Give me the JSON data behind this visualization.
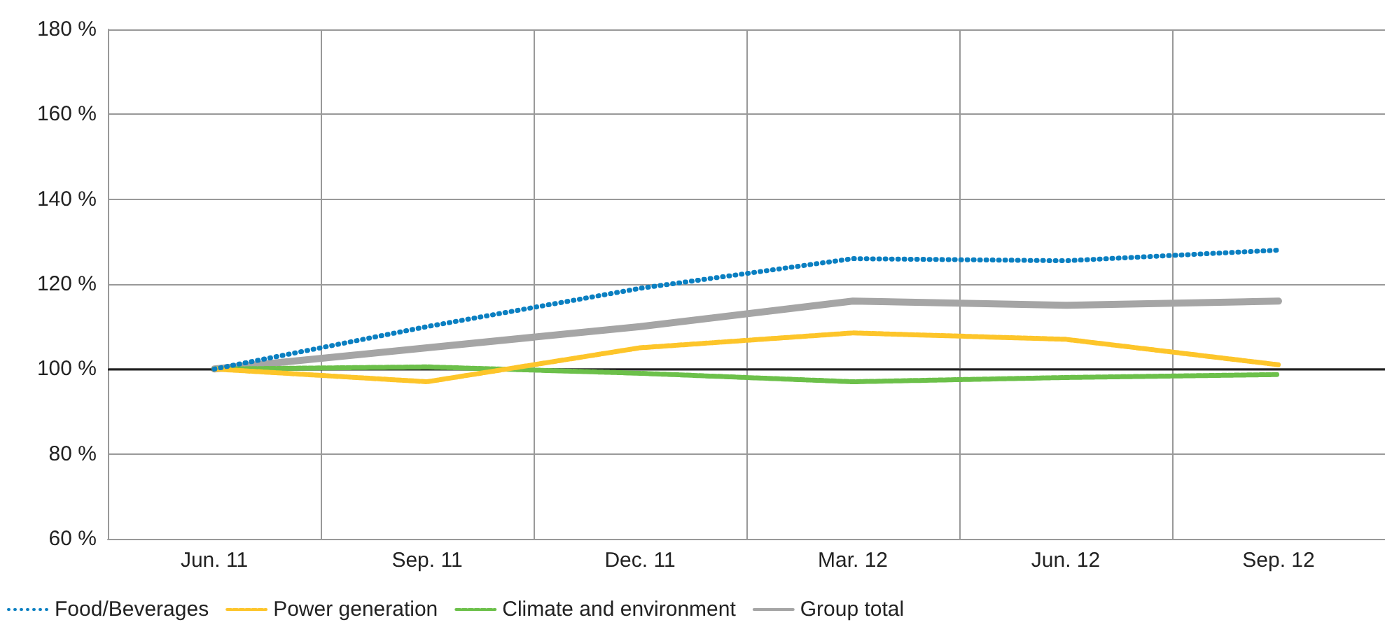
{
  "chart_data": {
    "type": "line",
    "categories": [
      "Jun. 11",
      "Sep. 11",
      "Dec. 11",
      "Mar. 12",
      "Jun. 12",
      "Sep. 12"
    ],
    "series": [
      {
        "name": "Food/Beverages",
        "color": "#0a7fc1",
        "line_style": "dotted",
        "values": [
          100,
          110,
          119,
          126,
          125.5,
          128
        ]
      },
      {
        "name": "Power generation",
        "color": "#fdc52a",
        "line_style": "dashed",
        "values": [
          100,
          97,
          105,
          108.5,
          107,
          101
        ]
      },
      {
        "name": "Climate and environment",
        "color": "#6cc04a",
        "line_style": "dashed",
        "values": [
          100,
          100.5,
          99,
          97,
          98,
          98.7
        ]
      },
      {
        "name": "Group total",
        "color": "#a5a5a5",
        "line_style": "solid",
        "values": [
          100,
          105,
          110,
          116,
          115,
          116
        ]
      }
    ],
    "ylim": [
      60,
      180
    ],
    "yticks": [
      {
        "value": 60,
        "label": "60 %"
      },
      {
        "value": 80,
        "label": "80 %"
      },
      {
        "value": 100,
        "label": "100 %"
      },
      {
        "value": 120,
        "label": "120 %"
      },
      {
        "value": 140,
        "label": "140 %"
      },
      {
        "value": 160,
        "label": "160 %"
      },
      {
        "value": 180,
        "label": "180 %"
      }
    ],
    "ref_lines": [
      {
        "axis": "y",
        "value": 100,
        "color": "#222222"
      }
    ],
    "grid": true,
    "legend": "bottom left",
    "marker": "none"
  }
}
